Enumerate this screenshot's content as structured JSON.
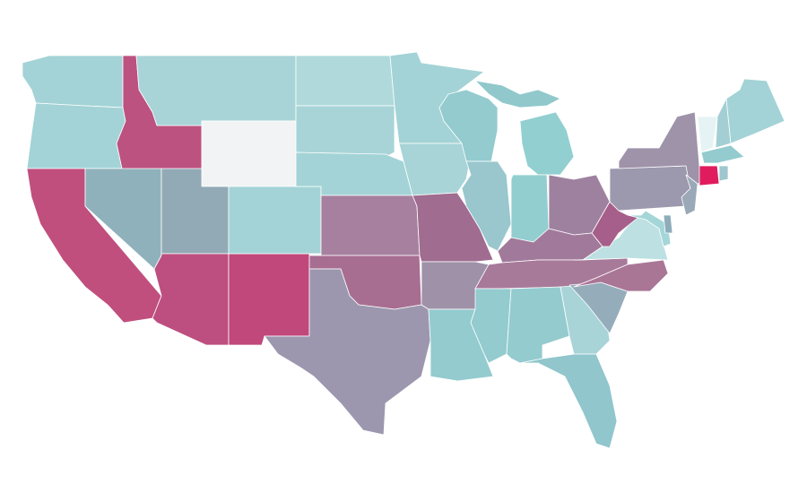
{
  "map": {
    "fills": [
      "#a3d3d6",
      "#a3d3d6",
      "#bc527f",
      "#a8d4d8",
      "#f2f3f4",
      "#c04f7d",
      "#8fb1bb",
      "#92aab6",
      "#bd4f80",
      "#c1487b",
      "#a3d3d6",
      "#b0d9db",
      "#a8d4d8",
      "#a3d3d6",
      "#a3d3d6",
      "#a7809f",
      "#a86e92",
      "#9c97ae",
      "#a8d4d8",
      "#a06c90",
      "#9e91a8",
      "#93cbcf",
      "#93cbcf",
      "#99c7cd",
      "#92cfd0",
      "#90c8cc",
      "#92ced0",
      "#9e819f",
      "#a17a9b",
      "#a87a9a",
      "#93cbcf",
      "#93cbcf",
      "#a8d4d8",
      "#90c6cc",
      "#95adbb",
      "#aa7696",
      "#bde0e2",
      "#a65f8a",
      "#9c99ae",
      "#9e93a9",
      "#a4d6d8",
      "#8eacba",
      "#9aa8b8",
      "#e6f3f4",
      "#a3cfd4",
      "#a3d3d6",
      "#93cbcf",
      "#e01b5e",
      "#9ec6ce"
    ]
  }
}
